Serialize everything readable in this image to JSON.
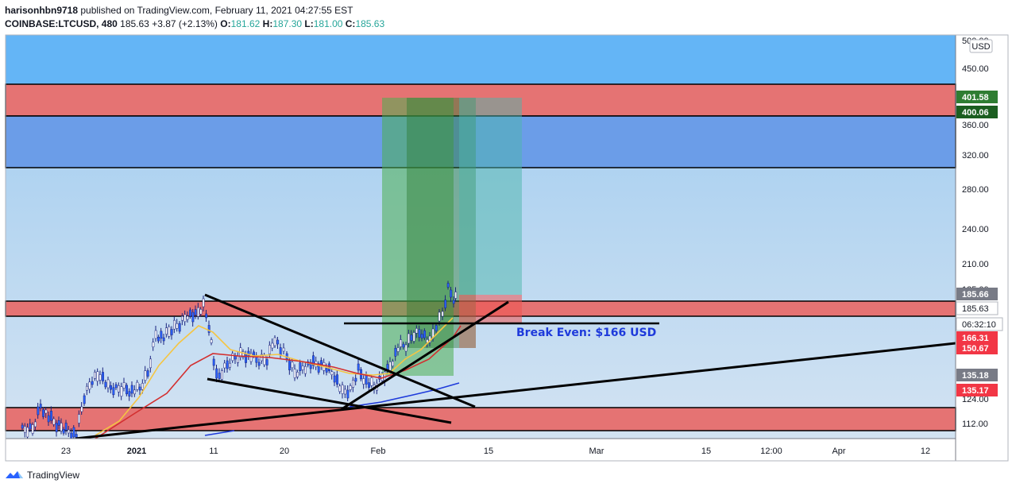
{
  "header": {
    "author": "harisonhbn9718",
    "published_text": "published on TradingView.com, February 11, 2021 04:27:55 EST",
    "symbol": "COINBASE:LTCUSD",
    "interval": "480",
    "last": "185.63",
    "change": "+3.87 (+2.13%)",
    "o_label": "O:",
    "o": "181.62",
    "h_label": "H:",
    "h": "187.30",
    "l_label": "L:",
    "l": "181.00",
    "c_label": "C:",
    "c": "185.63"
  },
  "footer": {
    "brand": "TradingView"
  },
  "colors": {
    "sky": "#64b5f6",
    "pale_blue": "#bbd6ee",
    "resistance_red": "#e57373",
    "mid_blue": "#6b9de8",
    "profit_green": "#4caf50",
    "loss_red": "#ef5350",
    "candle_up": "#ffffff",
    "candle_down": "#2962ff",
    "ma_orange": "#f5c542",
    "ma_red": "#d32f2f",
    "ma_blue": "#1e3adb"
  },
  "chart_data": {
    "type": "candlestick",
    "currency": "USD",
    "y_ticks": [
      "112.00",
      "124.00",
      "135.00",
      "150.00",
      "165.00",
      "185.00",
      "210.00",
      "240.00",
      "280.00",
      "320.00",
      "360.00",
      "400.00",
      "450.00",
      "500.00"
    ],
    "x_ticks": [
      "23",
      "2021",
      "11",
      "20",
      "Feb",
      "15",
      "Mar",
      "15",
      "12:00",
      "Apr",
      "12"
    ],
    "price_labels": [
      {
        "value": "401.58",
        "color": "#2e7d32"
      },
      {
        "value": "400.06",
        "color": "#1b5e20"
      },
      {
        "value": "185.66",
        "color": "#787b86"
      },
      {
        "value": "185.63",
        "color": "#ffffff"
      },
      {
        "value": "06:32:10",
        "color": "#ffffff"
      },
      {
        "value": "166.31",
        "color": "#f23645"
      },
      {
        "value": "150.67",
        "color": "#f23645"
      },
      {
        "value": "135.18",
        "color": "#787b86"
      },
      {
        "value": "135.17",
        "color": "#f23645"
      }
    ],
    "zones": [
      {
        "name": "upper-resistance",
        "from": 372,
        "to": 418
      },
      {
        "name": "blue-zone",
        "from": 305,
        "to": 372
      },
      {
        "name": "mid-resistance",
        "from": 174,
        "to": 190
      },
      {
        "name": "support",
        "from": 108,
        "to": 122
      }
    ],
    "break_even_label": "Break Even: $166 USD"
  }
}
